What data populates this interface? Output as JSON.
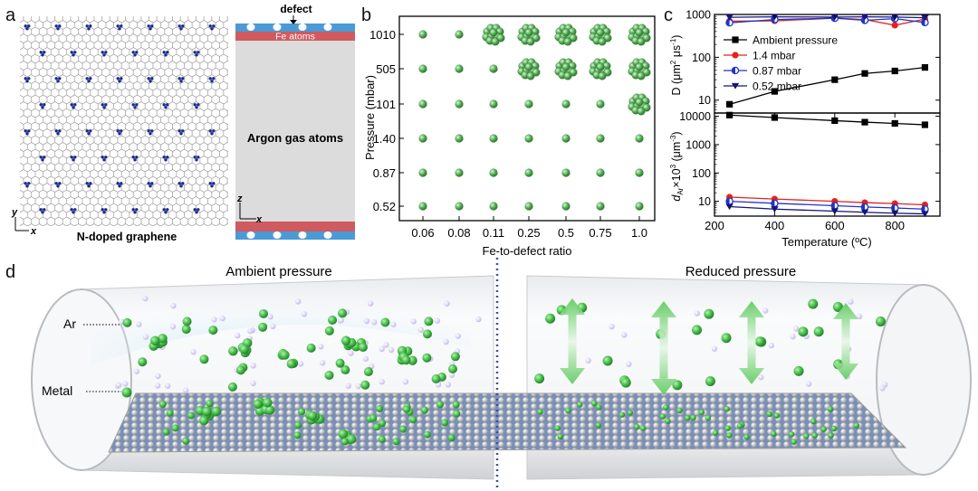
{
  "panel_labels": {
    "a": "a",
    "b": "b",
    "c": "c",
    "d": "d"
  },
  "panel_a": {
    "graphene_caption": "N-doped graphene",
    "axis_y": "y",
    "axis_x": "x",
    "defect_label": "defect",
    "fe_label": "Fe atoms",
    "argon_label": "Argon gas atoms",
    "axis_z": "z",
    "axis_x2": "x"
  },
  "panel_b": {
    "ylabel": "Pressure (mbar)",
    "xlabel": "Fe-to-defect ratio",
    "pressure_labels": [
      "1010",
      "505",
      "101",
      "1.40",
      "0.87",
      "0.52"
    ],
    "ratio_labels": [
      "0.06",
      "0.08",
      "0.11",
      "0.25",
      "0.5",
      "0.75",
      "1.0"
    ],
    "cluster_grid": [
      [
        0,
        0,
        1,
        1,
        1,
        1,
        1
      ],
      [
        0,
        0,
        0,
        1,
        1,
        1,
        1
      ],
      [
        0,
        0,
        0,
        0,
        0,
        0,
        1
      ],
      [
        0,
        0,
        0,
        0,
        0,
        0,
        0
      ],
      [
        0,
        0,
        0,
        0,
        0,
        0,
        0
      ],
      [
        0,
        0,
        0,
        0,
        0,
        0,
        0
      ]
    ],
    "particle_color": "#4fa84f"
  },
  "chart_data": [
    {
      "type": "line",
      "ylabel": "D (μm² μs⁻¹)",
      "yscale": "log",
      "ylim": [
        5,
        1000
      ],
      "yticks": [
        "1000",
        "100",
        "10"
      ],
      "x": [
        250,
        400,
        600,
        700,
        800,
        900
      ],
      "xlim": [
        200,
        950
      ],
      "series": [
        {
          "name": "Ambient pressure",
          "color": "#000000",
          "marker": "square",
          "values": [
            8,
            16,
            30,
            42,
            48,
            58
          ]
        },
        {
          "name": "1.4 mbar",
          "color": "#e8201c",
          "marker": "circle",
          "values": [
            700,
            710,
            820,
            760,
            560,
            780
          ]
        },
        {
          "name": "0.87 mbar",
          "color": "#1f35c8",
          "marker": "half-circle",
          "values": [
            640,
            760,
            820,
            730,
            800,
            650
          ]
        },
        {
          "name": "0.52 mbar",
          "color": "#141478",
          "marker": "triangle-down",
          "values": [
            860,
            880,
            870,
            880,
            870,
            840
          ]
        }
      ],
      "legend_placement": "left"
    },
    {
      "type": "line",
      "ylabel": "d_Ar×10³ (μm⁻³)",
      "yscale": "log",
      "ylim": [
        3,
        13000
      ],
      "yticks": [
        "10000",
        "1000",
        "100",
        "10"
      ],
      "x": [
        250,
        400,
        600,
        700,
        800,
        900
      ],
      "xlim": [
        200,
        950
      ],
      "xticks": [
        "200",
        "400",
        "600",
        "800"
      ],
      "xlabel": "Temperature (ºC)",
      "series": [
        {
          "name": "Ambient pressure",
          "color": "#000000",
          "marker": "square",
          "values": [
            11000,
            9000,
            7000,
            6200,
            5600,
            5000
          ]
        },
        {
          "name": "1.4 mbar",
          "color": "#e8201c",
          "marker": "circle",
          "values": [
            14,
            12,
            10,
            9,
            8.3,
            7.5
          ]
        },
        {
          "name": "0.87 mbar",
          "color": "#1f35c8",
          "marker": "half-circle",
          "values": [
            10,
            8.5,
            7,
            6.3,
            5.8,
            5.3
          ]
        },
        {
          "name": "0.52 mbar",
          "color": "#141478",
          "marker": "triangle-down",
          "values": [
            6.5,
            5.3,
            4.5,
            4.1,
            3.8,
            3.6
          ]
        }
      ]
    }
  ],
  "panel_d": {
    "ambient_title": "Ambient pressure",
    "reduced_title": "Reduced pressure",
    "ar_label": "Ar",
    "metal_label": "Metal"
  }
}
